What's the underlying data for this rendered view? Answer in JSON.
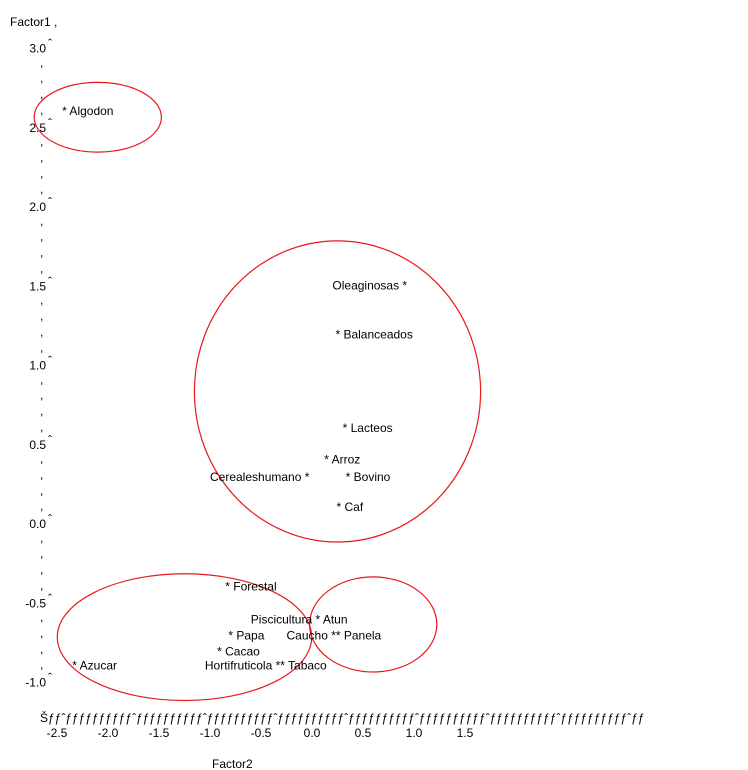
{
  "chart_data": {
    "type": "scatter",
    "ylabel": "Factor1 ,",
    "xlabel": "Factor2",
    "xlim": [
      -2.5,
      1.5
    ],
    "ylim": [
      -1.0,
      3.0
    ],
    "x_ticks": [
      "-2.5",
      "-2.0",
      "-1.5",
      "-1.0",
      "-0.5",
      "0.0",
      "0.5",
      "1.0",
      "1.5"
    ],
    "y_ticks": [
      "3.0",
      "2.5",
      "2.0",
      "1.5",
      "1.0",
      "0.5",
      "0.0",
      "-0.5",
      "-1.0"
    ],
    "x_axis_line": "Šƒƒˆƒƒƒƒƒƒƒƒƒƒˆƒƒƒƒƒƒƒƒƒƒˆƒƒƒƒƒƒƒƒƒƒˆƒƒƒƒƒƒƒƒƒƒˆƒƒƒƒƒƒƒƒƒƒˆƒƒƒƒƒƒƒƒƒƒˆƒƒƒƒƒƒƒƒƒƒˆƒƒƒƒƒƒƒƒƒƒˆƒƒ",
    "y_tick_mark": "ˆ",
    "y_axis_mark": ",",
    "labels": [
      {
        "text": "* Algodon",
        "x": -2.45,
        "y": 2.6
      },
      {
        "text": "Oleaginosas *",
        "x": 0.2,
        "y": 1.5
      },
      {
        "text": "* Balanceados",
        "x": 0.23,
        "y": 1.19
      },
      {
        "text": "* Lacteos",
        "x": 0.3,
        "y": 0.6
      },
      {
        "text": "* Arroz",
        "x": 0.12,
        "y": 0.4
      },
      {
        "text": "Cerealeshumano *",
        "x": -1.0,
        "y": 0.29
      },
      {
        "text": "* Bovino",
        "x": 0.33,
        "y": 0.29
      },
      {
        "text": "* Caf",
        "x": 0.24,
        "y": 0.1
      },
      {
        "text": "* Forestal",
        "x": -0.85,
        "y": -0.4
      },
      {
        "text": "Piscicultura * Atun",
        "x": -0.6,
        "y": -0.61
      },
      {
        "text": "* Papa",
        "x": -0.82,
        "y": -0.71
      },
      {
        "text": "Caucho ** Panela",
        "x": -0.25,
        "y": -0.71
      },
      {
        "text": "* Cacao",
        "x": -0.93,
        "y": -0.81
      },
      {
        "text": "* Azucar",
        "x": -2.35,
        "y": -0.9
      },
      {
        "text": "Hortifruticola ** Tabaco",
        "x": -1.05,
        "y": -0.9
      }
    ],
    "clusters": [
      {
        "cx": -2.1,
        "cy": 2.56,
        "rx": 0.6,
        "ry": 0.22,
        "color": "#e8191c"
      },
      {
        "cx": 0.25,
        "cy": 0.83,
        "rx": 1.35,
        "ry": 0.95,
        "color": "#e8191c"
      },
      {
        "cx": -1.25,
        "cy": -0.72,
        "rx": 1.2,
        "ry": 0.4,
        "color": "#e8191c"
      },
      {
        "cx": 0.6,
        "cy": -0.64,
        "rx": 0.6,
        "ry": 0.3,
        "color": "#e8191c"
      }
    ],
    "grid": false,
    "legend": "none"
  }
}
